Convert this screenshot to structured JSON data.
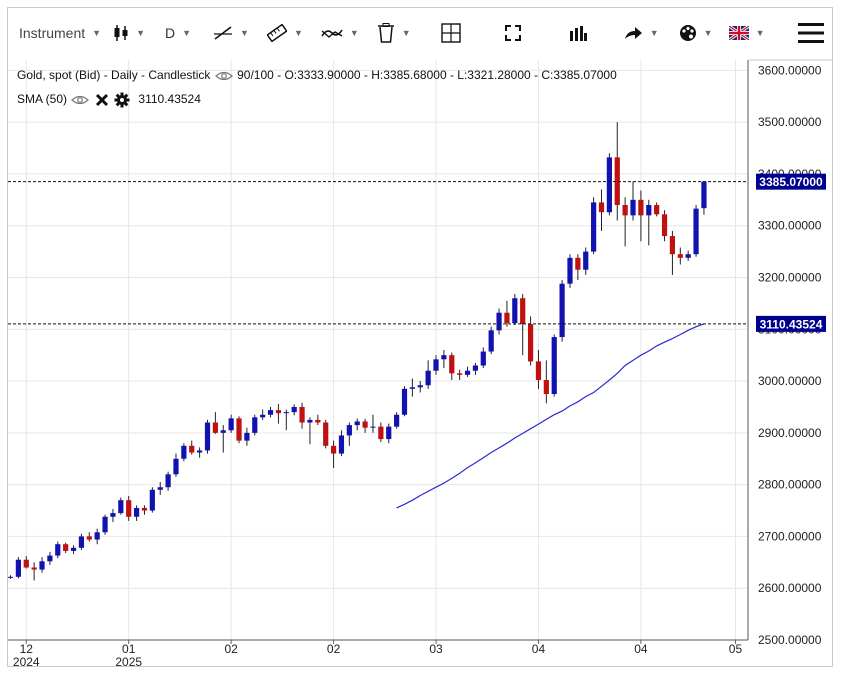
{
  "toolbar": {
    "instrument_label": "Instrument",
    "period_label": "D",
    "items": [
      "instrument-select",
      "chart-type-select",
      "period-select",
      "draw-line-tool",
      "measure-tool",
      "indicator-tool",
      "delete-tool",
      "crosshair-toggle",
      "fullscreen-button",
      "volume-button",
      "share-button",
      "theme-select",
      "language-select",
      "menu-button"
    ]
  },
  "legend": {
    "instrument": "Gold, spot (Bid) - Daily - Candlestick",
    "range_text": "90/100",
    "open_text": "O:3333.90000",
    "high_text": "H:3385.68000",
    "low_text": "L:3321.28000",
    "close_text": "C:3385.07000",
    "sma_label": "SMA (50)",
    "sma_value": "3110.43524"
  },
  "colors": {
    "up": "#1212b0",
    "down": "#c01010",
    "sma": "#2a2ad0",
    "grid": "#e6e6e6",
    "label_bg": "#00008f"
  },
  "chart_data": {
    "type": "candlestick",
    "title": "Gold, spot (Bid) - Daily - Candlestick",
    "ylim": [
      2500,
      3620
    ],
    "y_ticks": [
      2500,
      2600,
      2700,
      2800,
      2900,
      3000,
      3100,
      3200,
      3300,
      3400,
      3500,
      3600
    ],
    "y_tick_labels": [
      "2500.00000",
      "2600.00000",
      "2700.00000",
      "2800.00000",
      "2900.00000",
      "3000.00000",
      "3100.00000",
      "3200.00000",
      "3300.00000",
      "3400.00000",
      "3500.00000",
      "3600.00000"
    ],
    "x_ticks": [
      {
        "index": 2,
        "label": "12",
        "sub": "2024"
      },
      {
        "index": 15,
        "label": "01",
        "sub": "2025"
      },
      {
        "index": 28,
        "label": "02",
        "sub": ""
      },
      {
        "index": 41,
        "label": "02",
        "sub": ""
      },
      {
        "index": 54,
        "label": "03",
        "sub": ""
      },
      {
        "index": 67,
        "label": "04",
        "sub": ""
      },
      {
        "index": 80,
        "label": "04",
        "sub": ""
      },
      {
        "index": 92,
        "label": "05",
        "sub": ""
      }
    ],
    "last_price_label": "3385.07000",
    "sma_price_label": "3110.43524",
    "candles": [
      {
        "o": 2620,
        "h": 2625,
        "l": 2618,
        "c": 2622
      },
      {
        "o": 2622,
        "h": 2660,
        "l": 2619,
        "c": 2655
      },
      {
        "o": 2655,
        "h": 2662,
        "l": 2638,
        "c": 2640
      },
      {
        "o": 2640,
        "h": 2650,
        "l": 2615,
        "c": 2636
      },
      {
        "o": 2636,
        "h": 2660,
        "l": 2630,
        "c": 2652
      },
      {
        "o": 2652,
        "h": 2670,
        "l": 2645,
        "c": 2663
      },
      {
        "o": 2663,
        "h": 2690,
        "l": 2658,
        "c": 2685
      },
      {
        "o": 2685,
        "h": 2688,
        "l": 2668,
        "c": 2672
      },
      {
        "o": 2672,
        "h": 2683,
        "l": 2666,
        "c": 2678
      },
      {
        "o": 2678,
        "h": 2705,
        "l": 2674,
        "c": 2700
      },
      {
        "o": 2700,
        "h": 2708,
        "l": 2690,
        "c": 2694
      },
      {
        "o": 2694,
        "h": 2715,
        "l": 2685,
        "c": 2708
      },
      {
        "o": 2708,
        "h": 2742,
        "l": 2703,
        "c": 2738
      },
      {
        "o": 2738,
        "h": 2753,
        "l": 2728,
        "c": 2745
      },
      {
        "o": 2745,
        "h": 2775,
        "l": 2742,
        "c": 2770
      },
      {
        "o": 2770,
        "h": 2778,
        "l": 2730,
        "c": 2738
      },
      {
        "o": 2738,
        "h": 2760,
        "l": 2730,
        "c": 2755
      },
      {
        "o": 2755,
        "h": 2760,
        "l": 2742,
        "c": 2750
      },
      {
        "o": 2750,
        "h": 2795,
        "l": 2746,
        "c": 2790
      },
      {
        "o": 2790,
        "h": 2805,
        "l": 2780,
        "c": 2795
      },
      {
        "o": 2795,
        "h": 2825,
        "l": 2788,
        "c": 2820
      },
      {
        "o": 2820,
        "h": 2860,
        "l": 2815,
        "c": 2850
      },
      {
        "o": 2850,
        "h": 2880,
        "l": 2845,
        "c": 2875
      },
      {
        "o": 2875,
        "h": 2885,
        "l": 2858,
        "c": 2862
      },
      {
        "o": 2862,
        "h": 2872,
        "l": 2852,
        "c": 2866
      },
      {
        "o": 2866,
        "h": 2925,
        "l": 2860,
        "c": 2920
      },
      {
        "o": 2920,
        "h": 2940,
        "l": 2898,
        "c": 2900
      },
      {
        "o": 2900,
        "h": 2915,
        "l": 2862,
        "c": 2905
      },
      {
        "o": 2905,
        "h": 2935,
        "l": 2900,
        "c": 2928
      },
      {
        "o": 2928,
        "h": 2932,
        "l": 2880,
        "c": 2885
      },
      {
        "o": 2885,
        "h": 2910,
        "l": 2875,
        "c": 2900
      },
      {
        "o": 2900,
        "h": 2935,
        "l": 2895,
        "c": 2930
      },
      {
        "o": 2930,
        "h": 2945,
        "l": 2925,
        "c": 2935
      },
      {
        "o": 2935,
        "h": 2950,
        "l": 2930,
        "c": 2944
      },
      {
        "o": 2944,
        "h": 2956,
        "l": 2918,
        "c": 2938
      },
      {
        "o": 2938,
        "h": 2945,
        "l": 2905,
        "c": 2940
      },
      {
        "o": 2940,
        "h": 2955,
        "l": 2934,
        "c": 2950
      },
      {
        "o": 2950,
        "h": 2958,
        "l": 2908,
        "c": 2920
      },
      {
        "o": 2920,
        "h": 2930,
        "l": 2878,
        "c": 2925
      },
      {
        "o": 2925,
        "h": 2935,
        "l": 2915,
        "c": 2920
      },
      {
        "o": 2920,
        "h": 2925,
        "l": 2870,
        "c": 2875
      },
      {
        "o": 2875,
        "h": 2885,
        "l": 2832,
        "c": 2860
      },
      {
        "o": 2860,
        "h": 2905,
        "l": 2855,
        "c": 2895
      },
      {
        "o": 2895,
        "h": 2920,
        "l": 2875,
        "c": 2915
      },
      {
        "o": 2915,
        "h": 2928,
        "l": 2905,
        "c": 2922
      },
      {
        "o": 2922,
        "h": 2927,
        "l": 2900,
        "c": 2910
      },
      {
        "o": 2910,
        "h": 2935,
        "l": 2900,
        "c": 2912
      },
      {
        "o": 2912,
        "h": 2920,
        "l": 2882,
        "c": 2888
      },
      {
        "o": 2888,
        "h": 2918,
        "l": 2880,
        "c": 2912
      },
      {
        "o": 2912,
        "h": 2940,
        "l": 2908,
        "c": 2935
      },
      {
        "o": 2935,
        "h": 2990,
        "l": 2932,
        "c": 2985
      },
      {
        "o": 2985,
        "h": 3005,
        "l": 2970,
        "c": 2988
      },
      {
        "o": 2988,
        "h": 3000,
        "l": 2978,
        "c": 2992
      },
      {
        "o": 2992,
        "h": 3040,
        "l": 2985,
        "c": 3020
      },
      {
        "o": 3020,
        "h": 3050,
        "l": 3012,
        "c": 3042
      },
      {
        "o": 3042,
        "h": 3060,
        "l": 3025,
        "c": 3050
      },
      {
        "o": 3050,
        "h": 3055,
        "l": 3002,
        "c": 3015
      },
      {
        "o": 3015,
        "h": 3022,
        "l": 3002,
        "c": 3012
      },
      {
        "o": 3012,
        "h": 3028,
        "l": 3008,
        "c": 3020
      },
      {
        "o": 3020,
        "h": 3035,
        "l": 3012,
        "c": 3030
      },
      {
        "o": 3030,
        "h": 3065,
        "l": 3025,
        "c": 3057
      },
      {
        "o": 3057,
        "h": 3105,
        "l": 3052,
        "c": 3098
      },
      {
        "o": 3098,
        "h": 3140,
        "l": 3090,
        "c": 3132
      },
      {
        "o": 3132,
        "h": 3155,
        "l": 3105,
        "c": 3112
      },
      {
        "o": 3112,
        "h": 3168,
        "l": 3108,
        "c": 3160
      },
      {
        "o": 3160,
        "h": 3168,
        "l": 3050,
        "c": 3110
      },
      {
        "o": 3110,
        "h": 3125,
        "l": 3030,
        "c": 3038
      },
      {
        "o": 3038,
        "h": 3060,
        "l": 2985,
        "c": 3002
      },
      {
        "o": 3002,
        "h": 3040,
        "l": 2957,
        "c": 2975
      },
      {
        "o": 2975,
        "h": 3090,
        "l": 2970,
        "c": 3085
      },
      {
        "o": 3085,
        "h": 3195,
        "l": 3076,
        "c": 3188
      },
      {
        "o": 3188,
        "h": 3245,
        "l": 3180,
        "c": 3238
      },
      {
        "o": 3238,
        "h": 3245,
        "l": 3195,
        "c": 3215
      },
      {
        "o": 3215,
        "h": 3258,
        "l": 3205,
        "c": 3250
      },
      {
        "o": 3250,
        "h": 3355,
        "l": 3245,
        "c": 3345
      },
      {
        "o": 3345,
        "h": 3370,
        "l": 3290,
        "c": 3326
      },
      {
        "o": 3326,
        "h": 3440,
        "l": 3320,
        "c": 3432
      },
      {
        "o": 3432,
        "h": 3500,
        "l": 3310,
        "c": 3340
      },
      {
        "o": 3340,
        "h": 3355,
        "l": 3260,
        "c": 3320
      },
      {
        "o": 3320,
        "h": 3385,
        "l": 3310,
        "c": 3350
      },
      {
        "o": 3350,
        "h": 3368,
        "l": 3270,
        "c": 3320
      },
      {
        "o": 3320,
        "h": 3350,
        "l": 3262,
        "c": 3340
      },
      {
        "o": 3340,
        "h": 3345,
        "l": 3318,
        "c": 3322
      },
      {
        "o": 3322,
        "h": 3330,
        "l": 3270,
        "c": 3280
      },
      {
        "o": 3280,
        "h": 3290,
        "l": 3205,
        "c": 3245
      },
      {
        "o": 3245,
        "h": 3258,
        "l": 3225,
        "c": 3238
      },
      {
        "o": 3238,
        "h": 3252,
        "l": 3232,
        "c": 3245
      },
      {
        "o": 3245,
        "h": 3340,
        "l": 3240,
        "c": 3333
      },
      {
        "o": 3333.9,
        "h": 3385.68,
        "l": 3321.28,
        "c": 3385.07
      }
    ],
    "sma": {
      "name": "SMA (50)",
      "values": [
        2755,
        2762,
        2770,
        2779,
        2787,
        2795,
        2803,
        2812,
        2822,
        2833,
        2842,
        2852,
        2862,
        2871,
        2880,
        2890,
        2899,
        2908,
        2917,
        2926,
        2935,
        2942,
        2952,
        2960,
        2970,
        2978,
        2990,
        3002,
        3015,
        3030,
        3040,
        3050,
        3058,
        3068,
        3075,
        3082,
        3090,
        3098,
        3105,
        3110.43524
      ]
    }
  }
}
